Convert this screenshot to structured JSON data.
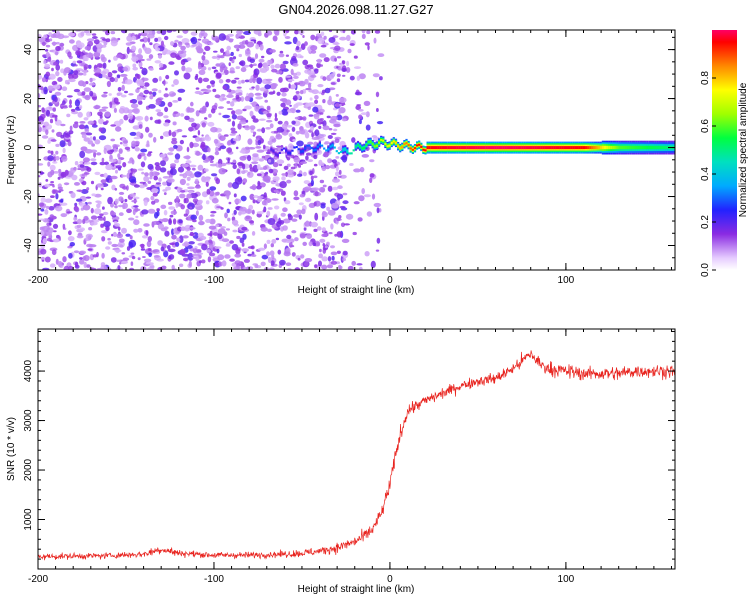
{
  "title": "GN04.2026.098.11.27.G27",
  "colors": {
    "snr_line": "#e8241f",
    "axis": "#000000",
    "background": "#ffffff"
  },
  "chart_data": [
    {
      "type": "heatmap",
      "name": "spectrogram",
      "xlabel": "Height of straight line (km)",
      "ylabel": "Frequency (Hz)",
      "xlim": [
        -200,
        162
      ],
      "ylim": [
        -50,
        48
      ],
      "xticks": [
        {
          "value": -200,
          "label": "-200"
        },
        {
          "value": -100,
          "label": "-100"
        },
        {
          "value": 0,
          "label": "0"
        },
        {
          "value": 100,
          "label": "100"
        }
      ],
      "yticks": [
        {
          "value": 40,
          "label": "40"
        },
        {
          "value": 20,
          "label": "20"
        },
        {
          "value": 0,
          "label": "0"
        },
        {
          "value": -20,
          "label": "-20"
        },
        {
          "value": -40,
          "label": "-40"
        }
      ],
      "noise_region_km": [
        -200,
        -25
      ],
      "carrier_trace": [
        {
          "x": -65,
          "y": -2,
          "amp": 0.2
        },
        {
          "x": -55,
          "y": -1,
          "amp": 0.25
        },
        {
          "x": -45,
          "y": 0,
          "amp": 0.3
        },
        {
          "x": -35,
          "y": 0,
          "amp": 0.35
        },
        {
          "x": -25,
          "y": -2,
          "amp": 0.45
        },
        {
          "x": -15,
          "y": 1,
          "amp": 0.55
        },
        {
          "x": -5,
          "y": 2,
          "amp": 0.7
        },
        {
          "x": 5,
          "y": 1,
          "amp": 0.8
        },
        {
          "x": 15,
          "y": 0,
          "amp": 0.95
        },
        {
          "x": 60,
          "y": 0,
          "amp": 1.0
        },
        {
          "x": 110,
          "y": 0,
          "amp": 0.95
        },
        {
          "x": 130,
          "y": 0,
          "amp": 0.6
        },
        {
          "x": 162,
          "y": 0,
          "amp": 0.5
        }
      ],
      "colorbar": {
        "label": "Normalized spectral amplitude",
        "range": [
          0,
          1
        ],
        "ticks": [
          {
            "value": 0.0,
            "label": "0.0"
          },
          {
            "value": 0.2,
            "label": "0.2"
          },
          {
            "value": 0.4,
            "label": "0.4"
          },
          {
            "value": 0.6,
            "label": "0.6"
          },
          {
            "value": 0.8,
            "label": "0.8"
          }
        ]
      }
    },
    {
      "type": "line",
      "name": "snr",
      "xlabel": "Height of straight line (km)",
      "ylabel": "SNR (10 * v/v)",
      "xlim": [
        -200,
        162
      ],
      "ylim": [
        0,
        4850
      ],
      "xticks": [
        {
          "value": -200,
          "label": "-200"
        },
        {
          "value": -100,
          "label": "-100"
        },
        {
          "value": 0,
          "label": "0"
        },
        {
          "value": 100,
          "label": "100"
        }
      ],
      "yticks": [
        {
          "value": 4000,
          "label": "4000"
        },
        {
          "value": 3000,
          "label": "3000"
        },
        {
          "value": 2000,
          "label": "2000"
        },
        {
          "value": 1000,
          "label": "1000"
        }
      ],
      "series": [
        {
          "name": "SNR",
          "x": [
            -200,
            -180,
            -160,
            -140,
            -130,
            -120,
            -100,
            -80,
            -60,
            -50,
            -40,
            -30,
            -20,
            -15,
            -10,
            -5,
            0,
            5,
            10,
            20,
            30,
            40,
            50,
            60,
            70,
            75,
            80,
            85,
            90,
            100,
            110,
            120,
            130,
            140,
            150,
            162
          ],
          "y": [
            250,
            260,
            270,
            300,
            400,
            320,
            280,
            280,
            300,
            320,
            360,
            430,
            550,
            650,
            800,
            1100,
            1700,
            2600,
            3200,
            3400,
            3550,
            3700,
            3800,
            3850,
            4050,
            4200,
            4350,
            4150,
            4050,
            4000,
            3950,
            3950,
            3950,
            4000,
            4000,
            4000
          ],
          "noise_amplitude": [
            110,
            110,
            110,
            120,
            170,
            120,
            110,
            110,
            120,
            140,
            150,
            180,
            200,
            220,
            240,
            260,
            300,
            300,
            250,
            200,
            200,
            200,
            200,
            200,
            220,
            250,
            280,
            260,
            250,
            250,
            250,
            250,
            250,
            250,
            250,
            250
          ]
        }
      ]
    }
  ]
}
